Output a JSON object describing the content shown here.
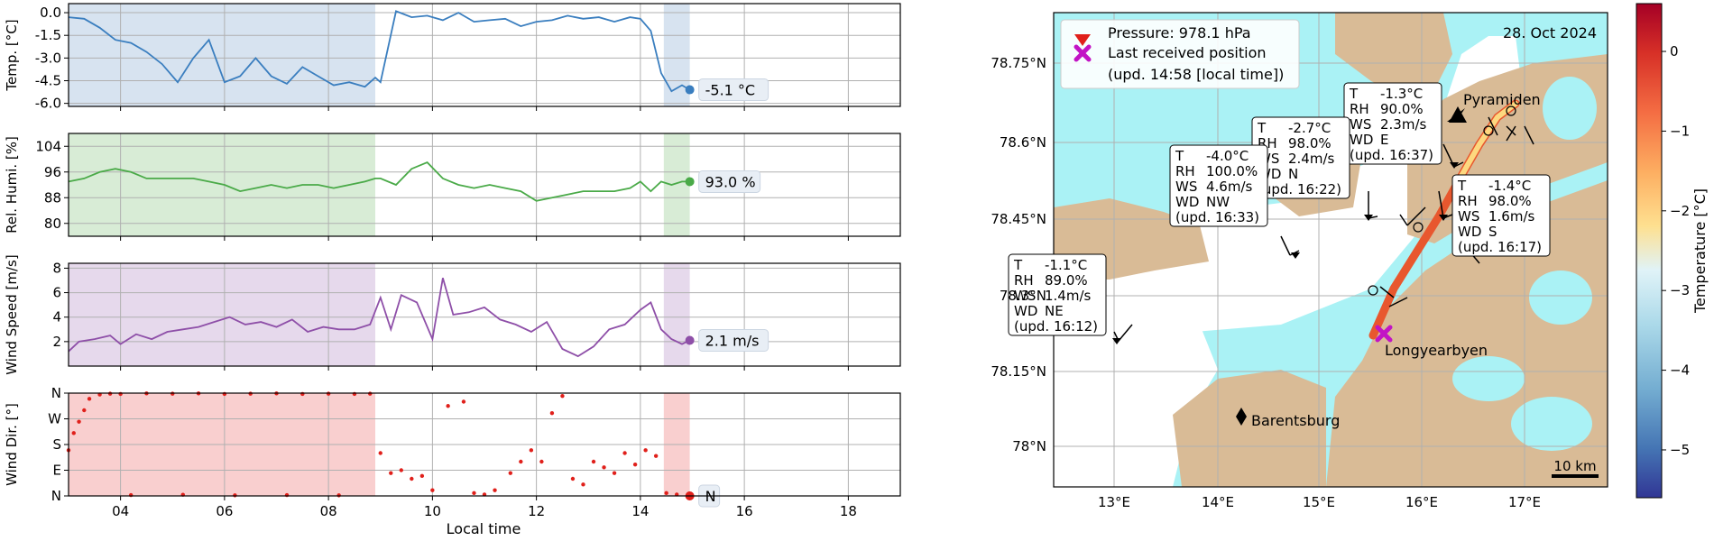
{
  "chart_data": [
    {
      "type": "line",
      "ylabel": "Temp. [°C]",
      "ylim": [
        -6.2,
        0.6
      ],
      "yticks": [
        0.0,
        -1.5,
        -3.0,
        -4.5,
        -6.0
      ],
      "ytick_labels": [
        "0.0",
        "-1.5",
        "-3.0",
        "-4.5",
        "-6.0"
      ],
      "x_hours": [
        3.0,
        3.3,
        3.6,
        3.9,
        4.2,
        4.5,
        4.8,
        5.1,
        5.4,
        5.7,
        6.0,
        6.3,
        6.6,
        6.9,
        7.2,
        7.5,
        7.8,
        8.1,
        8.4,
        8.7,
        8.9,
        9.0,
        9.3,
        9.6,
        9.9,
        10.2,
        10.5,
        10.8,
        11.1,
        11.4,
        11.7,
        12.0,
        12.3,
        12.6,
        12.9,
        13.2,
        13.5,
        13.8,
        14.0,
        14.2,
        14.4,
        14.6,
        14.8,
        14.95
      ],
      "values": [
        -0.3,
        -0.4,
        -1.0,
        -1.8,
        -2.0,
        -2.6,
        -3.4,
        -4.6,
        -3.0,
        -1.8,
        -4.6,
        -4.2,
        -3.0,
        -4.2,
        -4.7,
        -3.6,
        -4.2,
        -4.8,
        -4.6,
        -4.9,
        -4.3,
        -4.6,
        0.1,
        -0.3,
        -0.2,
        -0.5,
        0.0,
        -0.6,
        -0.5,
        -0.4,
        -0.9,
        -0.6,
        -0.5,
        -0.2,
        -0.4,
        -0.3,
        -0.6,
        -0.3,
        -0.4,
        -1.2,
        -4.0,
        -5.2,
        -4.8,
        -5.1
      ],
      "last_label": "-5.1 °C",
      "color": "#3a7ebf"
    },
    {
      "type": "line",
      "ylabel": "Rel. Humi. [%]",
      "ylim": [
        76,
        108
      ],
      "yticks": [
        104,
        96,
        88,
        80
      ],
      "ytick_labels": [
        "104",
        "96",
        "88",
        "80"
      ],
      "x_hours": [
        3.0,
        3.3,
        3.6,
        3.9,
        4.2,
        4.5,
        4.8,
        5.1,
        5.4,
        5.7,
        6.0,
        6.3,
        6.6,
        6.9,
        7.2,
        7.5,
        7.8,
        8.1,
        8.4,
        8.7,
        8.9,
        9.0,
        9.3,
        9.6,
        9.9,
        10.2,
        10.5,
        10.8,
        11.1,
        11.4,
        11.7,
        12.0,
        12.3,
        12.6,
        12.9,
        13.2,
        13.5,
        13.8,
        14.0,
        14.2,
        14.4,
        14.6,
        14.8,
        14.95
      ],
      "values": [
        93,
        94,
        96,
        97,
        96,
        94,
        94,
        94,
        94,
        93,
        92,
        90,
        91,
        92,
        91,
        92,
        92,
        91,
        92,
        93,
        94,
        94,
        92,
        97,
        99,
        94,
        92,
        91,
        92,
        91,
        90,
        87,
        88,
        89,
        90,
        90,
        90,
        91,
        93,
        90,
        93,
        92,
        93,
        93
      ],
      "last_label": "93.0 %",
      "color": "#4aaa48"
    },
    {
      "type": "line",
      "ylabel": "Wind Speed [m/s]",
      "ylim": [
        0,
        8.4
      ],
      "yticks": [
        8,
        6,
        4,
        2
      ],
      "ytick_labels": [
        "8",
        "6",
        "4",
        "2"
      ],
      "x_hours": [
        3.0,
        3.2,
        3.5,
        3.8,
        4.0,
        4.3,
        4.6,
        4.9,
        5.2,
        5.5,
        5.8,
        6.1,
        6.4,
        6.7,
        7.0,
        7.3,
        7.6,
        7.9,
        8.2,
        8.5,
        8.8,
        9.0,
        9.2,
        9.4,
        9.7,
        10.0,
        10.2,
        10.4,
        10.7,
        11.0,
        11.3,
        11.6,
        11.9,
        12.2,
        12.5,
        12.8,
        13.1,
        13.4,
        13.7,
        14.0,
        14.2,
        14.4,
        14.6,
        14.8,
        14.95
      ],
      "values": [
        1.2,
        2.0,
        2.2,
        2.5,
        1.8,
        2.6,
        2.2,
        2.8,
        3.0,
        3.2,
        3.6,
        4.0,
        3.4,
        3.6,
        3.2,
        3.8,
        2.8,
        3.2,
        3.0,
        3.0,
        3.4,
        5.6,
        3.0,
        5.8,
        5.2,
        2.2,
        7.2,
        4.2,
        4.4,
        4.8,
        3.8,
        3.4,
        2.8,
        3.6,
        1.4,
        0.8,
        1.6,
        3.0,
        3.4,
        4.6,
        5.2,
        3.0,
        2.2,
        1.8,
        2.1
      ],
      "last_label": "2.1 m/s",
      "color": "#8e4fa8"
    },
    {
      "type": "scatter",
      "ylabel": "Wind Dir. [°]",
      "xlabel": "Local time",
      "ylim": [
        0,
        360
      ],
      "yticks": [
        360,
        270,
        180,
        90,
        0
      ],
      "ytick_labels": [
        "N",
        "W",
        "S",
        "E",
        "N"
      ],
      "x_hours": [
        3.0,
        3.1,
        3.2,
        3.3,
        3.4,
        3.6,
        3.8,
        4.0,
        4.5,
        5.0,
        5.5,
        6.0,
        6.5,
        7.0,
        7.5,
        8.0,
        8.5,
        8.8,
        4.2,
        5.2,
        6.2,
        7.2,
        8.2,
        9.0,
        9.2,
        9.4,
        9.6,
        9.8,
        10.0,
        10.3,
        10.6,
        10.8,
        11.0,
        11.2,
        11.5,
        11.7,
        11.9,
        12.1,
        12.3,
        12.5,
        12.7,
        12.9,
        13.1,
        13.3,
        13.5,
        13.7,
        13.9,
        14.1,
        14.3,
        14.5,
        14.7,
        14.95
      ],
      "values": [
        160,
        220,
        260,
        300,
        340,
        355,
        358,
        357,
        359,
        358,
        359,
        357,
        358,
        359,
        357,
        358,
        357,
        358,
        3,
        4,
        2,
        3,
        2,
        150,
        80,
        90,
        60,
        70,
        20,
        315,
        330,
        10,
        5,
        20,
        80,
        120,
        160,
        120,
        290,
        350,
        60,
        40,
        120,
        100,
        80,
        150,
        110,
        160,
        140,
        10,
        5,
        0
      ],
      "last_label": "N",
      "color": "#e0201b"
    },
    {
      "type": "map",
      "date_label": "28. Oct 2024",
      "lon_ticks": [
        "13°E",
        "14°E",
        "15°E",
        "16°E",
        "17°E"
      ],
      "lat_ticks": [
        "78.75°N",
        "78.6°N",
        "78.45°N",
        "78.3°N",
        "78.15°N",
        "78°N"
      ],
      "legend": {
        "pressure_text": "Pressure: 978.1 hPa",
        "position_text": "Last received position",
        "update_text": "(upd. 14:58 [local time])"
      },
      "places": [
        "Pyramiden",
        "Longyearbyen",
        "Barentsburg"
      ],
      "scale_label": "10 km",
      "stations": [
        {
          "T": "-1.3°C",
          "RH": "90.0%",
          "WS": "2.3m/s",
          "WD": "E",
          "upd": "(upd. 16:37)"
        },
        {
          "T": "-2.7°C",
          "RH": "98.0%",
          "WS": "2.4m/s",
          "WD": "N",
          "upd": "(upd. 16:22)"
        },
        {
          "T": "-4.0°C",
          "RH": "100.0%",
          "WS": "4.6m/s",
          "WD": "NW",
          "upd": "(upd. 16:33)"
        },
        {
          "T": "-1.4°C",
          "RH": "98.0%",
          "WS": "1.6m/s",
          "WD": "S",
          "upd": "(upd. 16:17)"
        },
        {
          "T": "-1.1°C",
          "RH": "89.0%",
          "WS": "1.4m/s",
          "WD": "NE",
          "upd": "(upd. 16:12)"
        }
      ],
      "colorbar": {
        "label": "Temperature [°C]",
        "range": [
          -5.6,
          0.6
        ],
        "ticks": [
          0,
          -1,
          -2,
          -3,
          -4,
          -5
        ],
        "tick_labels": [
          "0",
          "−1",
          "−2",
          "−3",
          "−4",
          "−5"
        ]
      }
    }
  ],
  "shared_time_axis": {
    "xlabel": "Local time",
    "xlim_hours": [
      3.0,
      19.0
    ],
    "ticks": [
      4,
      6,
      8,
      10,
      12,
      14,
      16,
      18
    ],
    "tick_labels": [
      "04",
      "06",
      "08",
      "10",
      "12",
      "14",
      "16",
      "18"
    ],
    "shaded_hours": [
      [
        3.0,
        8.9
      ],
      [
        14.45,
        14.95
      ]
    ]
  },
  "colors": {
    "land": "#d9bb96",
    "ice": "#aaf2f5",
    "water": "#ffffff",
    "track_warm": "#e8572e"
  }
}
